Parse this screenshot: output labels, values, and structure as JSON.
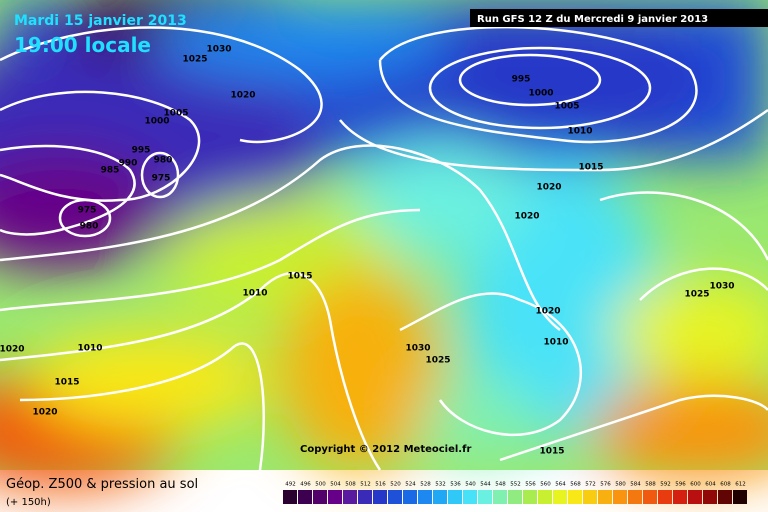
{
  "header": {
    "date": "Mardi 15 janvier 2013",
    "time": "19:00 locale",
    "run": "Run GFS 12 Z du Mercredi 9 janvier 2013"
  },
  "isobar_labels": [
    "1030",
    "1025",
    "1020",
    "1005",
    "1000",
    "995",
    "990",
    "985",
    "980",
    "975",
    "975",
    "980",
    "995",
    "1000",
    "1005",
    "1010",
    "1015",
    "1020",
    "1020",
    "1015",
    "1010",
    "1030",
    "1025",
    "1020",
    "1010",
    "1025",
    "1030",
    "1020",
    "1010",
    "1015",
    "1020",
    "1015"
  ],
  "copyright": "Copyright © 2012 Meteociel.fr",
  "footer": {
    "title": "Géop. Z500 & pression au sol",
    "lead": "(+ 150h)"
  },
  "scale": {
    "labels": [
      492,
      496,
      500,
      504,
      508,
      512,
      516,
      520,
      524,
      528,
      532,
      536,
      540,
      544,
      548,
      552,
      556,
      560,
      564,
      568,
      572,
      576,
      580,
      584,
      588,
      592,
      596,
      600,
      604,
      608,
      612
    ],
    "colors": [
      "#2a0030",
      "#3d0050",
      "#52006a",
      "#660088",
      "#5a1aa0",
      "#3a2ab8",
      "#2638c8",
      "#1e50d8",
      "#1a6ae6",
      "#1c88f0",
      "#20a8f4",
      "#30c8f6",
      "#48e2f8",
      "#6af0e0",
      "#80f0b0",
      "#90ec80",
      "#a8ec50",
      "#c8f030",
      "#e8f420",
      "#f8e818",
      "#f8cc10",
      "#f8b010",
      "#f89410",
      "#f47810",
      "#f05a10",
      "#e83c10",
      "#d42010",
      "#b81010",
      "#900808",
      "#600404",
      "#200000"
    ]
  }
}
